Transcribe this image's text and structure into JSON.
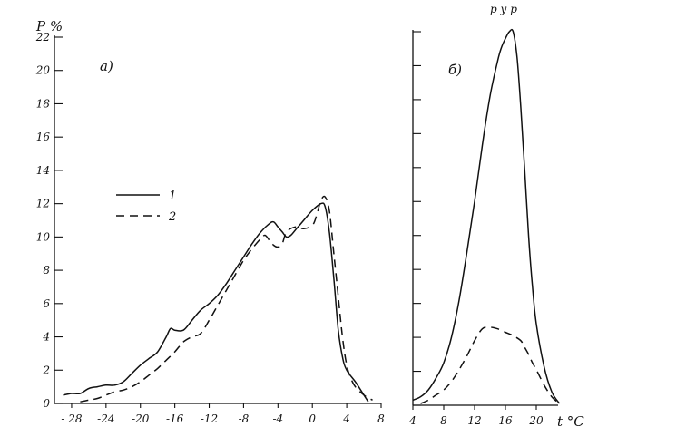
{
  "page_header_fragment": "р у р",
  "chart_data": [
    {
      "type": "line",
      "panel_label": "а)",
      "ylabel": "P %",
      "xlabel": "",
      "xlim": [
        -30,
        8
      ],
      "ylim": [
        0,
        22
      ],
      "xticks": [
        -28,
        -24,
        -20,
        -16,
        -12,
        -8,
        -4,
        0,
        4,
        8
      ],
      "xtick_labels": [
        "- 28",
        "-24",
        "-20",
        "-16",
        "-12",
        "-8",
        "-4",
        "0",
        "4",
        "8"
      ],
      "yticks": [
        0,
        2,
        4,
        6,
        8,
        10,
        12,
        14,
        16,
        18,
        20,
        22
      ],
      "ytick_labels": [
        "0",
        "2",
        "4",
        "6",
        "8",
        "10",
        "12",
        "14",
        "16",
        "18",
        "20",
        "22"
      ],
      "legend": {
        "position": "center-left",
        "entries": [
          {
            "label": "1",
            "style": "solid"
          },
          {
            "label": "2",
            "style": "dashed"
          }
        ]
      },
      "series": [
        {
          "name": "1",
          "style": "solid",
          "x": [
            -29,
            -28,
            -27,
            -26,
            -25,
            -24,
            -23,
            -22,
            -21,
            -20,
            -19,
            -18,
            -17,
            -16.5,
            -16,
            -15,
            -14,
            -13,
            -12,
            -11,
            -10,
            -9,
            -8,
            -7,
            -6,
            -5,
            -4.5,
            -4,
            -3.5,
            -3,
            -2.5,
            -2,
            -1,
            0,
            1,
            1.5,
            2,
            2.5,
            3,
            3.5,
            4,
            5,
            6,
            6.5
          ],
          "y": [
            0.5,
            0.6,
            0.6,
            0.9,
            1.0,
            1.1,
            1.1,
            1.3,
            1.8,
            2.3,
            2.7,
            3.1,
            4.0,
            4.5,
            4.4,
            4.4,
            5.0,
            5.6,
            6.0,
            6.5,
            7.2,
            8.0,
            8.8,
            9.6,
            10.3,
            10.8,
            10.9,
            10.6,
            10.3,
            10.0,
            10.1,
            10.4,
            11.0,
            11.6,
            12.0,
            11.8,
            10.2,
            7.5,
            4.5,
            2.8,
            2.0,
            1.3,
            0.5,
            0.1
          ]
        },
        {
          "name": "2",
          "style": "dashed",
          "x": [
            -27,
            -26,
            -25,
            -24,
            -23,
            -22,
            -21,
            -20,
            -19,
            -18,
            -17,
            -16,
            -15,
            -14,
            -13,
            -12,
            -11,
            -10,
            -9,
            -8,
            -7,
            -6,
            -5.5,
            -5,
            -4.5,
            -4,
            -3.5,
            -3,
            -2,
            -1,
            0,
            0.5,
            1,
            1.5,
            2,
            2.5,
            3,
            3.5,
            4,
            4.5,
            5,
            6,
            7
          ],
          "y": [
            0.1,
            0.2,
            0.3,
            0.5,
            0.7,
            0.8,
            1.0,
            1.3,
            1.7,
            2.1,
            2.6,
            3.1,
            3.7,
            4.0,
            4.2,
            5.0,
            5.9,
            6.8,
            7.7,
            8.6,
            9.3,
            9.9,
            10.1,
            9.8,
            9.5,
            9.4,
            9.6,
            10.3,
            10.6,
            10.5,
            10.7,
            11.3,
            12.2,
            12.4,
            11.5,
            9.0,
            6.5,
            4.0,
            2.3,
            1.5,
            1.0,
            0.5,
            0.2
          ]
        }
      ]
    },
    {
      "type": "line",
      "panel_label": "б)",
      "xlabel": "t °C",
      "ylabel": "",
      "xlim": [
        4,
        24
      ],
      "ylim": [
        0,
        22
      ],
      "xticks": [
        4,
        8,
        12,
        16,
        20
      ],
      "xtick_labels": [
        "4",
        "8",
        "12",
        "16",
        "20"
      ],
      "yticks": [
        0,
        2,
        4,
        6,
        8,
        10,
        12,
        14,
        16,
        18,
        20,
        22
      ],
      "ytick_labels": [
        "",
        "",
        "",
        "",
        "",
        "",
        "",
        "",
        "",
        "",
        "",
        ""
      ],
      "series": [
        {
          "name": "1",
          "style": "solid",
          "x": [
            4,
            5,
            6,
            7,
            8,
            9,
            10,
            11,
            12,
            13,
            14,
            15,
            15.5,
            16,
            16.5,
            17,
            17.5,
            18,
            18.5,
            19,
            19.5,
            20,
            21,
            22,
            23
          ],
          "y": [
            0.3,
            0.5,
            0.9,
            1.6,
            2.5,
            4.0,
            6.2,
            9.0,
            12.0,
            15.3,
            18.2,
            20.3,
            21.1,
            21.6,
            22.0,
            22.0,
            20.5,
            17.5,
            13.8,
            10.0,
            7.0,
            4.8,
            2.3,
            0.8,
            0.1
          ]
        },
        {
          "name": "2",
          "style": "dashed",
          "x": [
            5,
            6,
            7,
            8,
            9,
            10,
            11,
            12,
            13,
            14,
            15,
            16,
            17,
            18,
            18.5,
            19,
            19.5,
            20,
            21,
            22,
            23
          ],
          "y": [
            0.1,
            0.3,
            0.6,
            0.9,
            1.4,
            2.1,
            2.9,
            3.8,
            4.5,
            4.6,
            4.5,
            4.3,
            4.1,
            3.8,
            3.4,
            3.0,
            2.5,
            2.1,
            1.2,
            0.5,
            0.1
          ]
        }
      ]
    }
  ]
}
